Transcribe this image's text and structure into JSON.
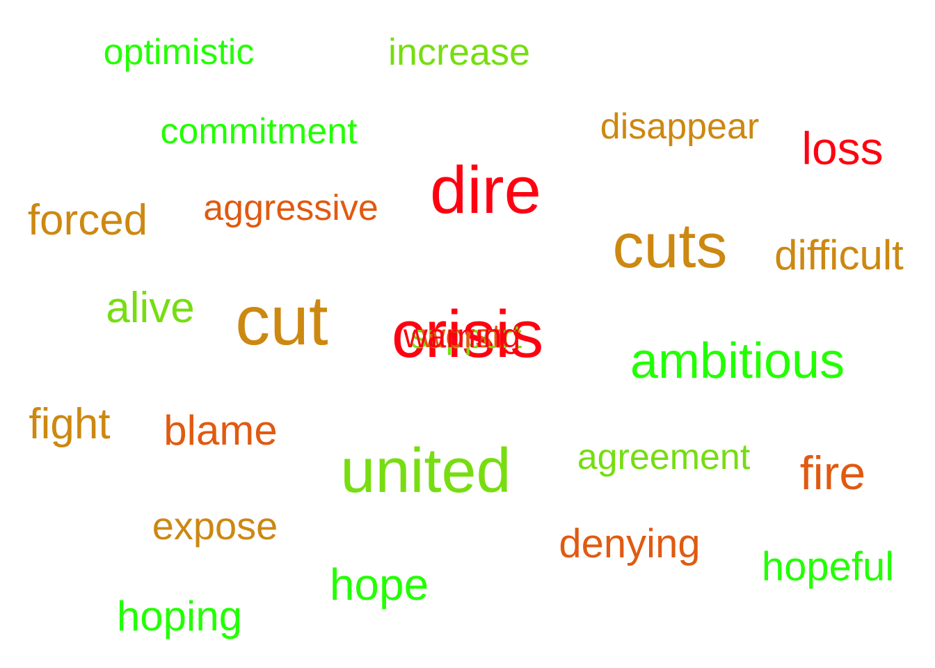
{
  "colors": {
    "bright_green": "#22ff00",
    "light_green": "#77dd11",
    "ochre": "#cc8811",
    "orange": "#e05a11",
    "red": "#ff0011"
  },
  "words": {
    "optimistic": "optimistic",
    "increase": "increase",
    "commitment": "commitment",
    "disappear": "disappear",
    "loss": "loss",
    "dire": "dire",
    "forced": "forced",
    "aggressive": "aggressive",
    "cuts": "cuts",
    "difficult": "difficult",
    "alive": "alive",
    "cut": "cut",
    "crisis": "crisis",
    "support": "support",
    "worst": "worst",
    "warning": "warning",
    "ambitious": "ambitious",
    "fight": "fight",
    "blame": "blame",
    "united": "united",
    "agreement": "agreement",
    "fire": "fire",
    "expose": "expose",
    "denying": "denying",
    "hopeful": "hopeful",
    "hope": "hope",
    "hoping": "hoping"
  },
  "word_colors": {
    "optimistic": "bright_green",
    "increase": "light_green",
    "commitment": "bright_green",
    "disappear": "ochre",
    "loss": "red",
    "dire": "red",
    "forced": "ochre",
    "aggressive": "orange",
    "cuts": "ochre",
    "difficult": "ochre",
    "alive": "light_green",
    "cut": "ochre",
    "crisis": "red",
    "support": "light_green",
    "worst": "orange",
    "warning": "red",
    "ambitious": "bright_green",
    "fight": "ochre",
    "blame": "orange",
    "united": "light_green",
    "agreement": "light_green",
    "fire": "orange",
    "expose": "ochre",
    "denying": "orange",
    "hopeful": "bright_green",
    "hope": "bright_green",
    "hoping": "bright_green"
  }
}
